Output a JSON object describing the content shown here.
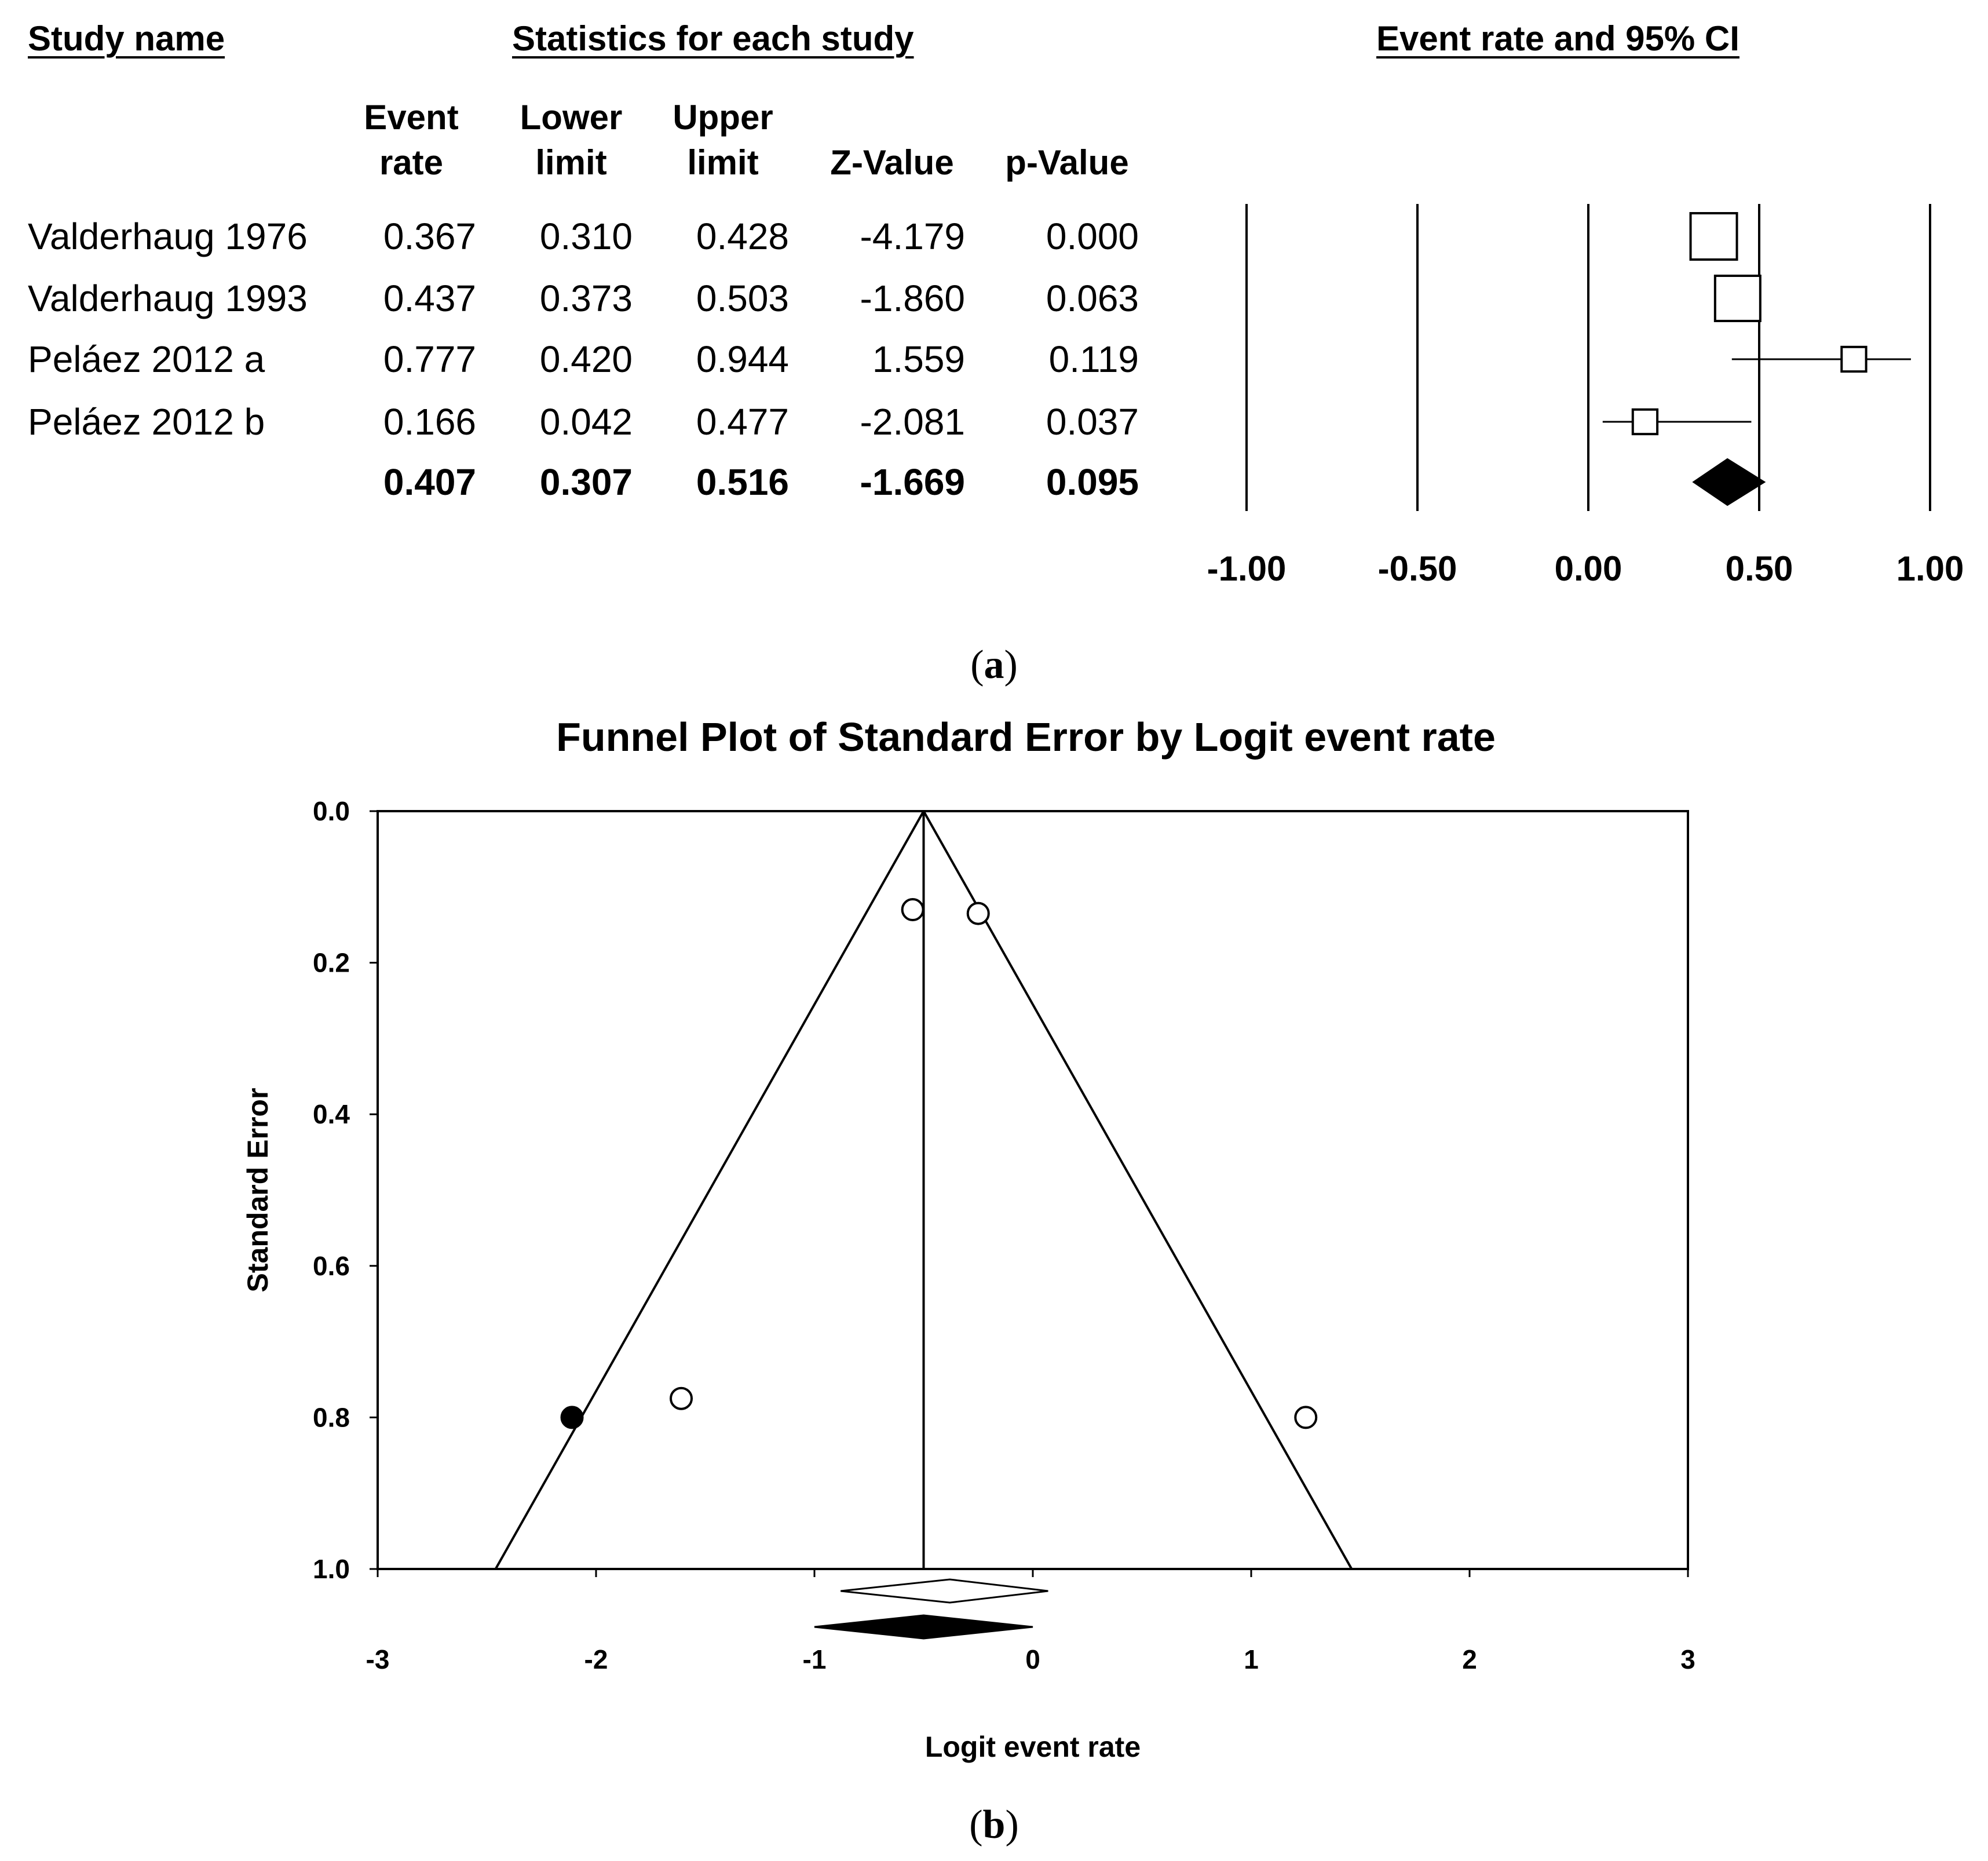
{
  "forest": {
    "headers": {
      "study_name": "Study name",
      "statistics": "Statistics for each study",
      "plot": "Event rate and 95% CI"
    },
    "columns": [
      {
        "line1": "Event",
        "line2": "rate"
      },
      {
        "line1": "Lower",
        "line2": "limit"
      },
      {
        "line1": "Upper",
        "line2": "limit"
      },
      {
        "line1": "",
        "line2": "Z-Value"
      },
      {
        "line1": "",
        "line2": "p-Value"
      }
    ],
    "rows": [
      {
        "name": "Valderhaug 1976",
        "event_rate": "0.367",
        "lower": "0.310",
        "upper": "0.428",
        "z": "-4.179",
        "p": "0.000"
      },
      {
        "name": "Valderhaug 1993",
        "event_rate": "0.437",
        "lower": "0.373",
        "upper": "0.503",
        "z": "-1.860",
        "p": "0.063"
      },
      {
        "name": "Peláez 2012 a",
        "event_rate": "0.777",
        "lower": "0.420",
        "upper": "0.944",
        "z": "1.559",
        "p": "0.119"
      },
      {
        "name": "Peláez 2012 b",
        "event_rate": "0.166",
        "lower": "0.042",
        "upper": "0.477",
        "z": "-2.081",
        "p": "0.037"
      }
    ],
    "summary": {
      "name": "",
      "event_rate": "0.407",
      "lower": "0.307",
      "upper": "0.516",
      "z": "-1.669",
      "p": "0.095"
    },
    "caption_letter": "a"
  },
  "funnel": {
    "title": "Funnel Plot of Standard Error by Logit event rate",
    "xlabel": "Logit event rate",
    "ylabel": "Standard Error",
    "caption_letter": "b"
  },
  "chart_data": [
    {
      "type": "forest",
      "title": "Event rate and 95% CI",
      "x_ticks": [
        "-1.00",
        "-0.50",
        "0.00",
        "0.50",
        "1.00"
      ],
      "xlim": [
        -1.0,
        1.0
      ],
      "studies": [
        {
          "name": "Valderhaug 1976",
          "estimate": 0.367,
          "lower": 0.31,
          "upper": 0.428,
          "weight": 1.0
        },
        {
          "name": "Valderhaug 1993",
          "estimate": 0.437,
          "lower": 0.373,
          "upper": 0.503,
          "weight": 0.95
        },
        {
          "name": "Peláez 2012 a",
          "estimate": 0.777,
          "lower": 0.42,
          "upper": 0.944,
          "weight": 0.28
        },
        {
          "name": "Peláez 2012 b",
          "estimate": 0.166,
          "lower": 0.042,
          "upper": 0.477,
          "weight": 0.28
        }
      ],
      "summary": {
        "estimate": 0.407,
        "lower": 0.307,
        "upper": 0.516
      }
    },
    {
      "type": "scatter",
      "title": "Funnel Plot of Standard Error by Logit event rate",
      "xlabel": "Logit event rate",
      "ylabel": "Standard Error",
      "xlim": [
        -3,
        3
      ],
      "ylim": [
        0.0,
        1.0
      ],
      "y_reversed": true,
      "x_ticks": [
        "-3",
        "-2",
        "-1",
        "0",
        "1",
        "2",
        "3"
      ],
      "y_ticks": [
        "0.0",
        "0.2",
        "0.4",
        "0.6",
        "0.8",
        "1.0"
      ],
      "center": -0.5,
      "funnel_bottom": [
        -2.46,
        1.46
      ],
      "observed": [
        {
          "x": -0.55,
          "y": 0.13
        },
        {
          "x": -0.25,
          "y": 0.135
        },
        {
          "x": -1.61,
          "y": 0.775
        },
        {
          "x": 1.25,
          "y": 0.8
        }
      ],
      "imputed": [
        {
          "x": -2.11,
          "y": 0.8
        }
      ],
      "observed_summary": {
        "estimate": -0.38,
        "lower": -0.88,
        "upper": 0.07
      },
      "adjusted_summary": {
        "estimate": -0.5,
        "lower": -1.0,
        "upper": 0.0
      }
    }
  ]
}
